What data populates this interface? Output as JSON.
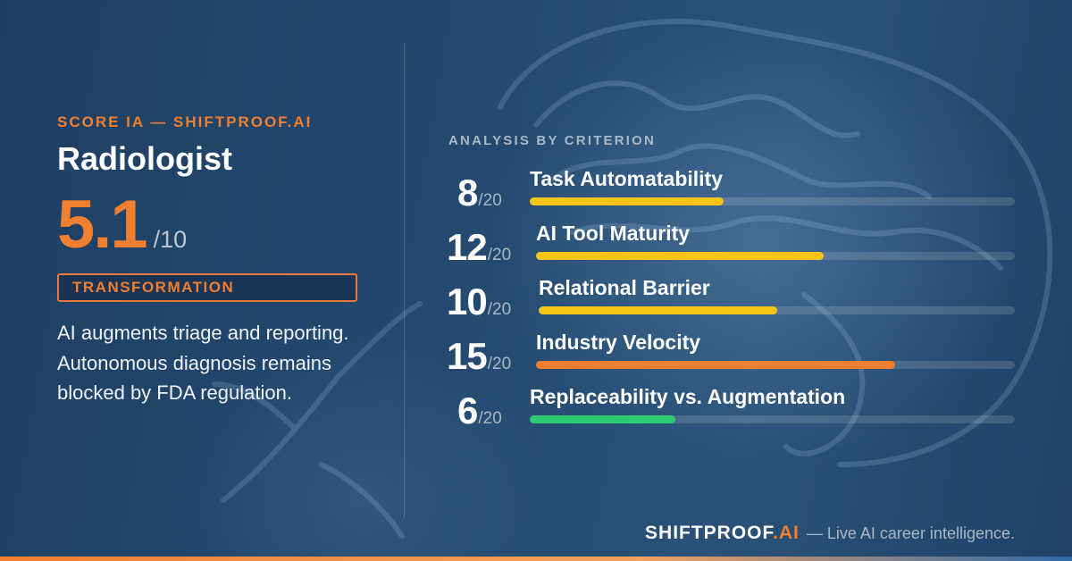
{
  "brand": {
    "eyebrow": "SCORE IA — SHIFTPROOF.AI",
    "logo_main": "SHIFTPROOF",
    "logo_suffix": ".AI",
    "tagline": "— Live AI career intelligence."
  },
  "job": {
    "title": "Radiologist",
    "score": "5.1",
    "score_max": "/10",
    "category": "TRANSFORMATION",
    "description": "AI augments triage and reporting. Autonomous diagnosis remains blocked by FDA regulation."
  },
  "analysis": {
    "label": "ANALYSIS BY CRITERION",
    "criteria": [
      {
        "score": "8",
        "max": "/20",
        "name": "Task Automatability",
        "value": 8,
        "color": "#f5c518"
      },
      {
        "score": "12",
        "max": "/20",
        "name": "AI Tool Maturity",
        "value": 12,
        "color": "#f5c518"
      },
      {
        "score": "10",
        "max": "/20",
        "name": "Relational Barrier",
        "value": 10,
        "color": "#f5c518"
      },
      {
        "score": "15",
        "max": "/20",
        "name": "Industry Velocity",
        "value": 15,
        "color": "#f07f2f"
      },
      {
        "score": "6",
        "max": "/20",
        "name": "Replaceability vs. Augmentation",
        "value": 6,
        "color": "#2ecc71"
      }
    ]
  },
  "colors": {
    "accent": "#f07f2f",
    "background": "#1c3d5e"
  }
}
